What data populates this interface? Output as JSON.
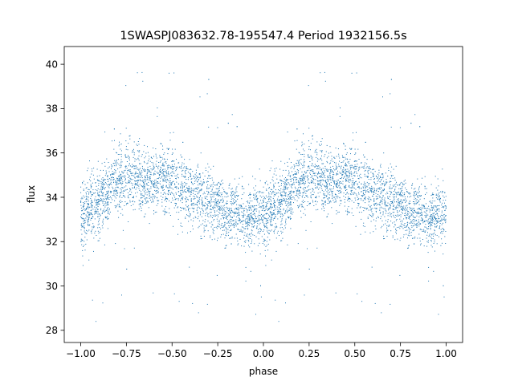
{
  "chart_data": {
    "type": "scatter",
    "title": "1SWASPJ083632.78-195547.4 Period 1932156.5s",
    "xlabel": "phase",
    "ylabel": "flux",
    "xlim": [
      -1.09,
      1.09
    ],
    "ylim": [
      27.45,
      40.8
    ],
    "x_ticks": [
      -1.0,
      -0.75,
      -0.5,
      -0.25,
      0.0,
      0.25,
      0.5,
      0.75,
      1.0
    ],
    "x_tick_labels": [
      "−1.00",
      "−0.75",
      "−0.50",
      "−0.25",
      "0.00",
      "0.25",
      "0.50",
      "0.75",
      "1.00"
    ],
    "y_ticks": [
      28,
      30,
      32,
      34,
      36,
      38,
      40
    ],
    "y_tick_labels": [
      "28",
      "30",
      "32",
      "34",
      "36",
      "38",
      "40"
    ],
    "grid": false,
    "legend": "none",
    "point_color": "#1f77b4",
    "profile": {
      "phase": [
        0.0,
        0.05,
        0.1,
        0.15,
        0.2,
        0.25,
        0.3,
        0.35,
        0.4,
        0.45,
        0.5,
        0.55,
        0.6,
        0.65,
        0.7,
        0.75,
        0.8,
        0.85,
        0.9,
        0.95,
        1.0
      ],
      "median_flux": [
        33.2,
        33.6,
        33.7,
        34.2,
        34.8,
        35.0,
        34.9,
        34.6,
        34.7,
        34.9,
        34.8,
        34.5,
        34.3,
        34.0,
        33.9,
        33.6,
        33.3,
        33.3,
        33.1,
        33.2,
        33.3
      ],
      "low_flux": [
        31.8,
        32.1,
        32.2,
        32.6,
        33.0,
        33.2,
        33.1,
        32.9,
        33.0,
        33.2,
        33.1,
        32.8,
        32.6,
        32.4,
        32.3,
        32.1,
        31.9,
        31.9,
        31.8,
        31.9,
        31.9
      ],
      "high_flux": [
        35.2,
        35.5,
        35.7,
        36.1,
        36.6,
        36.8,
        36.7,
        36.4,
        36.6,
        36.8,
        36.6,
        36.3,
        36.1,
        35.9,
        35.8,
        35.5,
        35.2,
        35.2,
        35.1,
        35.2,
        35.3
      ]
    }
  }
}
